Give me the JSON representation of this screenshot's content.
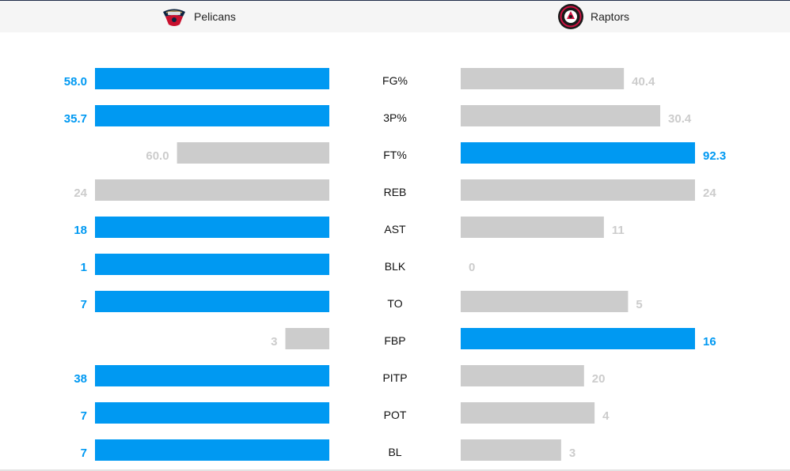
{
  "teams": {
    "home": {
      "name": "Pelicans",
      "logo_icon": "pelicans-logo-icon"
    },
    "away": {
      "name": "Raptors",
      "logo_icon": "raptors-logo-icon"
    }
  },
  "colors": {
    "leader": "#0099f2",
    "trailer": "#cccccc"
  },
  "stats": [
    {
      "label": "FG%",
      "home": 58.0,
      "away": 40.4,
      "home_text": "58.0",
      "away_text": "40.4",
      "leader": "home"
    },
    {
      "label": "3P%",
      "home": 35.7,
      "away": 30.4,
      "home_text": "35.7",
      "away_text": "30.4",
      "leader": "home"
    },
    {
      "label": "FT%",
      "home": 60.0,
      "away": 92.3,
      "home_text": "60.0",
      "away_text": "92.3",
      "leader": "away"
    },
    {
      "label": "REB",
      "home": 24,
      "away": 24,
      "home_text": "24",
      "away_text": "24",
      "leader": "none"
    },
    {
      "label": "AST",
      "home": 18,
      "away": 11,
      "home_text": "18",
      "away_text": "11",
      "leader": "home"
    },
    {
      "label": "BLK",
      "home": 1,
      "away": 0,
      "home_text": "1",
      "away_text": "0",
      "leader": "home"
    },
    {
      "label": "TO",
      "home": 7,
      "away": 5,
      "home_text": "7",
      "away_text": "5",
      "leader": "home"
    },
    {
      "label": "FBP",
      "home": 3,
      "away": 16,
      "home_text": "3",
      "away_text": "16",
      "leader": "away"
    },
    {
      "label": "PITP",
      "home": 38,
      "away": 20,
      "home_text": "38",
      "away_text": "20",
      "leader": "home"
    },
    {
      "label": "POT",
      "home": 7,
      "away": 4,
      "home_text": "7",
      "away_text": "4",
      "leader": "home"
    },
    {
      "label": "BL",
      "home": 7,
      "away": 3,
      "home_text": "7",
      "away_text": "3",
      "leader": "home"
    }
  ]
}
